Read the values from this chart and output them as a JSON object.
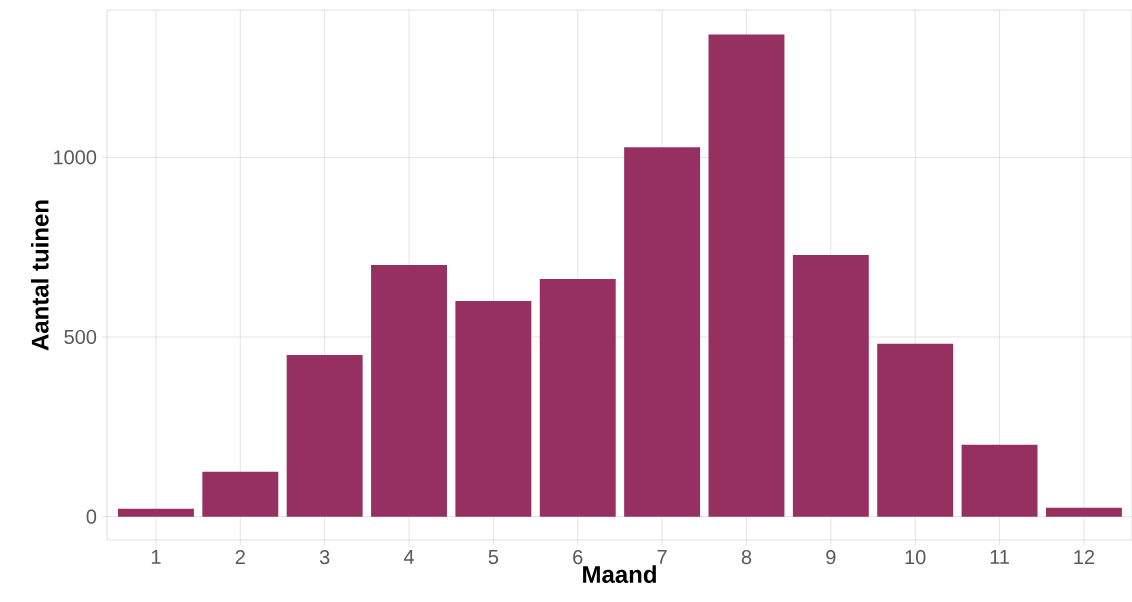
{
  "chart_data": {
    "type": "bar",
    "xlabel": "Maand",
    "ylabel": "Aantal tuinen",
    "categories": [
      "1",
      "2",
      "3",
      "4",
      "5",
      "6",
      "7",
      "8",
      "9",
      "10",
      "11",
      "12"
    ],
    "values": [
      22,
      125,
      450,
      700,
      600,
      661,
      1028,
      1342,
      728,
      481,
      200,
      25
    ],
    "color": "#963060",
    "ylim": [
      -65,
      1410
    ],
    "yticks": [
      0,
      500,
      1000
    ],
    "grid": true
  }
}
